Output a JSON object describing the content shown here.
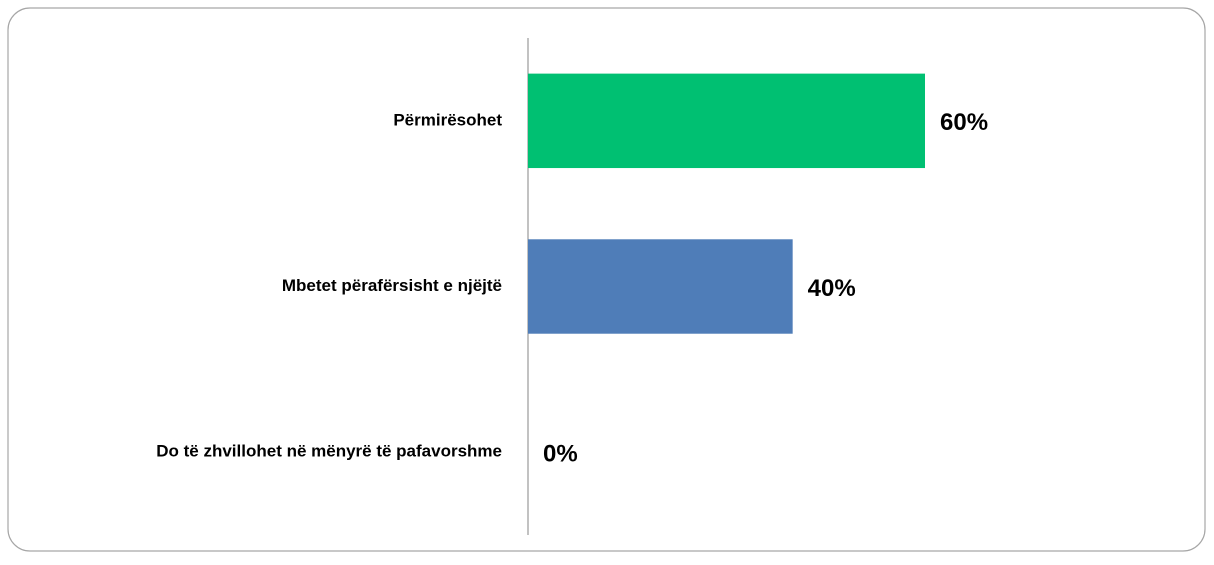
{
  "chart_data": {
    "type": "bar",
    "orientation": "horizontal",
    "categories": [
      "Përmirësohet",
      "Mbetet përafërsisht e njëjtë",
      "Do të zhvillohet në mënyrë të pafavorshme"
    ],
    "values": [
      60,
      40,
      0
    ],
    "value_labels": [
      "60%",
      "40%",
      "0%"
    ],
    "colors": [
      "#00c072",
      "#4f7db8",
      "#c0504d"
    ]
  }
}
